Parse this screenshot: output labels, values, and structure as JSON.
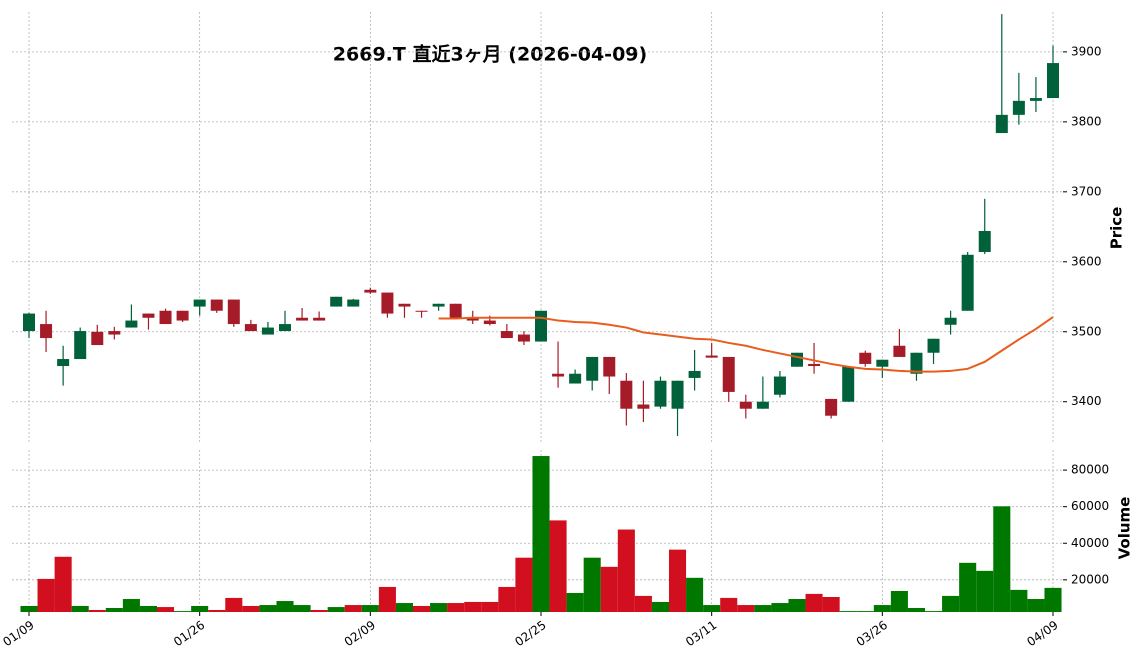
{
  "chart_data": [
    {
      "type": "candlestick",
      "title": "2669.T  直近3ヶ月  (2026-04-09)",
      "ylabel": "Price",
      "categories": [
        "01/09",
        null,
        null,
        null,
        null,
        null,
        null,
        null,
        null,
        null,
        "01/26",
        null,
        null,
        null,
        null,
        null,
        null,
        null,
        null,
        null,
        "02/09",
        null,
        null,
        null,
        null,
        null,
        null,
        null,
        null,
        null,
        "02/25",
        null,
        null,
        null,
        null,
        null,
        null,
        null,
        null,
        null,
        "03/11",
        null,
        null,
        null,
        null,
        null,
        null,
        null,
        null,
        null,
        "03/26",
        null,
        null,
        null,
        null,
        null,
        null,
        null,
        null,
        null,
        "04/09"
      ],
      "open": [
        3501,
        3511,
        3451,
        3461,
        3500,
        3501,
        3506,
        3526,
        3530,
        3530,
        3536,
        3546,
        3546,
        3511,
        3496,
        3501,
        3520,
        3520,
        3536,
        3536,
        3560,
        3556,
        3540,
        3530,
        3536,
        3540,
        3520,
        3516,
        3501,
        3496,
        3486,
        3440,
        3426,
        3430,
        3464,
        3430,
        3396,
        3393,
        3390,
        3434,
        3466,
        3464,
        3400,
        3390,
        3410,
        3450,
        3454,
        3404,
        3400,
        3470,
        3450,
        3480,
        3440,
        3470,
        3510,
        3530,
        3614,
        3784,
        3810,
        3830,
        3834
      ],
      "high": [
        3527,
        3530,
        3480,
        3506,
        3510,
        3507,
        3539,
        3526,
        3533,
        3530,
        3546,
        3546,
        3546,
        3517,
        3514,
        3530,
        3534,
        3529,
        3550,
        3547,
        3563,
        3556,
        3540,
        3530,
        3540,
        3540,
        3530,
        3523,
        3511,
        3501,
        3530,
        3486,
        3446,
        3464,
        3464,
        3441,
        3430,
        3436,
        3430,
        3474,
        3484,
        3464,
        3410,
        3436,
        3444,
        3470,
        3484,
        3404,
        3450,
        3473,
        3460,
        3504,
        3470,
        3490,
        3530,
        3614,
        3690,
        3954,
        3870,
        3864,
        3909
      ],
      "low": [
        3491,
        3471,
        3423,
        3461,
        3481,
        3489,
        3506,
        3503,
        3511,
        3514,
        3523,
        3527,
        3507,
        3501,
        3496,
        3501,
        3516,
        3516,
        3536,
        3536,
        3554,
        3520,
        3520,
        3520,
        3530,
        3520,
        3511,
        3509,
        3491,
        3481,
        3486,
        3420,
        3426,
        3416,
        3411,
        3366,
        3371,
        3390,
        3351,
        3416,
        3463,
        3400,
        3376,
        3390,
        3406,
        3450,
        3440,
        3376,
        3400,
        3450,
        3434,
        3464,
        3430,
        3454,
        3496,
        3530,
        3611,
        3784,
        3796,
        3814,
        3834
      ],
      "close": [
        3526,
        3491,
        3461,
        3501,
        3481,
        3496,
        3516,
        3520,
        3511,
        3516,
        3546,
        3530,
        3511,
        3501,
        3506,
        3511,
        3516,
        3516,
        3550,
        3546,
        3556,
        3526,
        3536,
        3529,
        3540,
        3520,
        3516,
        3511,
        3491,
        3486,
        3530,
        3436,
        3440,
        3464,
        3436,
        3390,
        3390,
        3430,
        3430,
        3444,
        3463,
        3414,
        3390,
        3400,
        3436,
        3470,
        3451,
        3380,
        3450,
        3454,
        3460,
        3464,
        3470,
        3490,
        3520,
        3610,
        3644,
        3810,
        3830,
        3834,
        3884
      ],
      "up_color": "#00613a",
      "down_color": "#a51b28",
      "series": [
        {
          "color": "#e85d1c",
          "values": [
            null,
            null,
            null,
            null,
            null,
            null,
            null,
            null,
            null,
            null,
            null,
            null,
            null,
            null,
            null,
            null,
            null,
            null,
            null,
            null,
            null,
            null,
            null,
            null,
            3519,
            3519,
            3520,
            3520,
            3520,
            3520,
            3520,
            3516,
            3514,
            3513,
            3510,
            3506,
            3499,
            3496,
            3493,
            3490,
            3489,
            3484,
            3480,
            3474,
            3469,
            3464,
            3459,
            3454,
            3450,
            3447,
            3446,
            3444,
            3443,
            3443,
            3444,
            3447,
            3457,
            3473,
            3489,
            3504,
            3521
          ]
        }
      ],
      "ylim": [
        3341,
        3957
      ],
      "yticks": [
        3400,
        3500,
        3600,
        3700,
        3800,
        3900
      ],
      "grid": true
    },
    {
      "type": "bar",
      "ylabel": "Volume",
      "values": [
        5700,
        20500,
        32600,
        5700,
        3500,
        4600,
        9500,
        5700,
        5100,
        2900,
        5700,
        3500,
        10100,
        5700,
        6200,
        8400,
        6200,
        3500,
        5100,
        6200,
        6200,
        16100,
        7300,
        5700,
        7300,
        7300,
        7900,
        7900,
        16100,
        32100,
        87700,
        52500,
        12800,
        32100,
        27100,
        47500,
        11200,
        7900,
        36500,
        21100,
        6200,
        10100,
        6200,
        6200,
        7300,
        9500,
        12300,
        10600,
        2900,
        2900,
        6200,
        13900,
        4600,
        2900,
        11200,
        29300,
        24900,
        60200,
        14500,
        9500,
        15600
      ],
      "up_color": "#007800",
      "down_color": "#d10f1e",
      "ylim": [
        2400,
        91000
      ],
      "yticks": [
        20000,
        40000,
        60000,
        80000
      ],
      "grid": true
    }
  ]
}
